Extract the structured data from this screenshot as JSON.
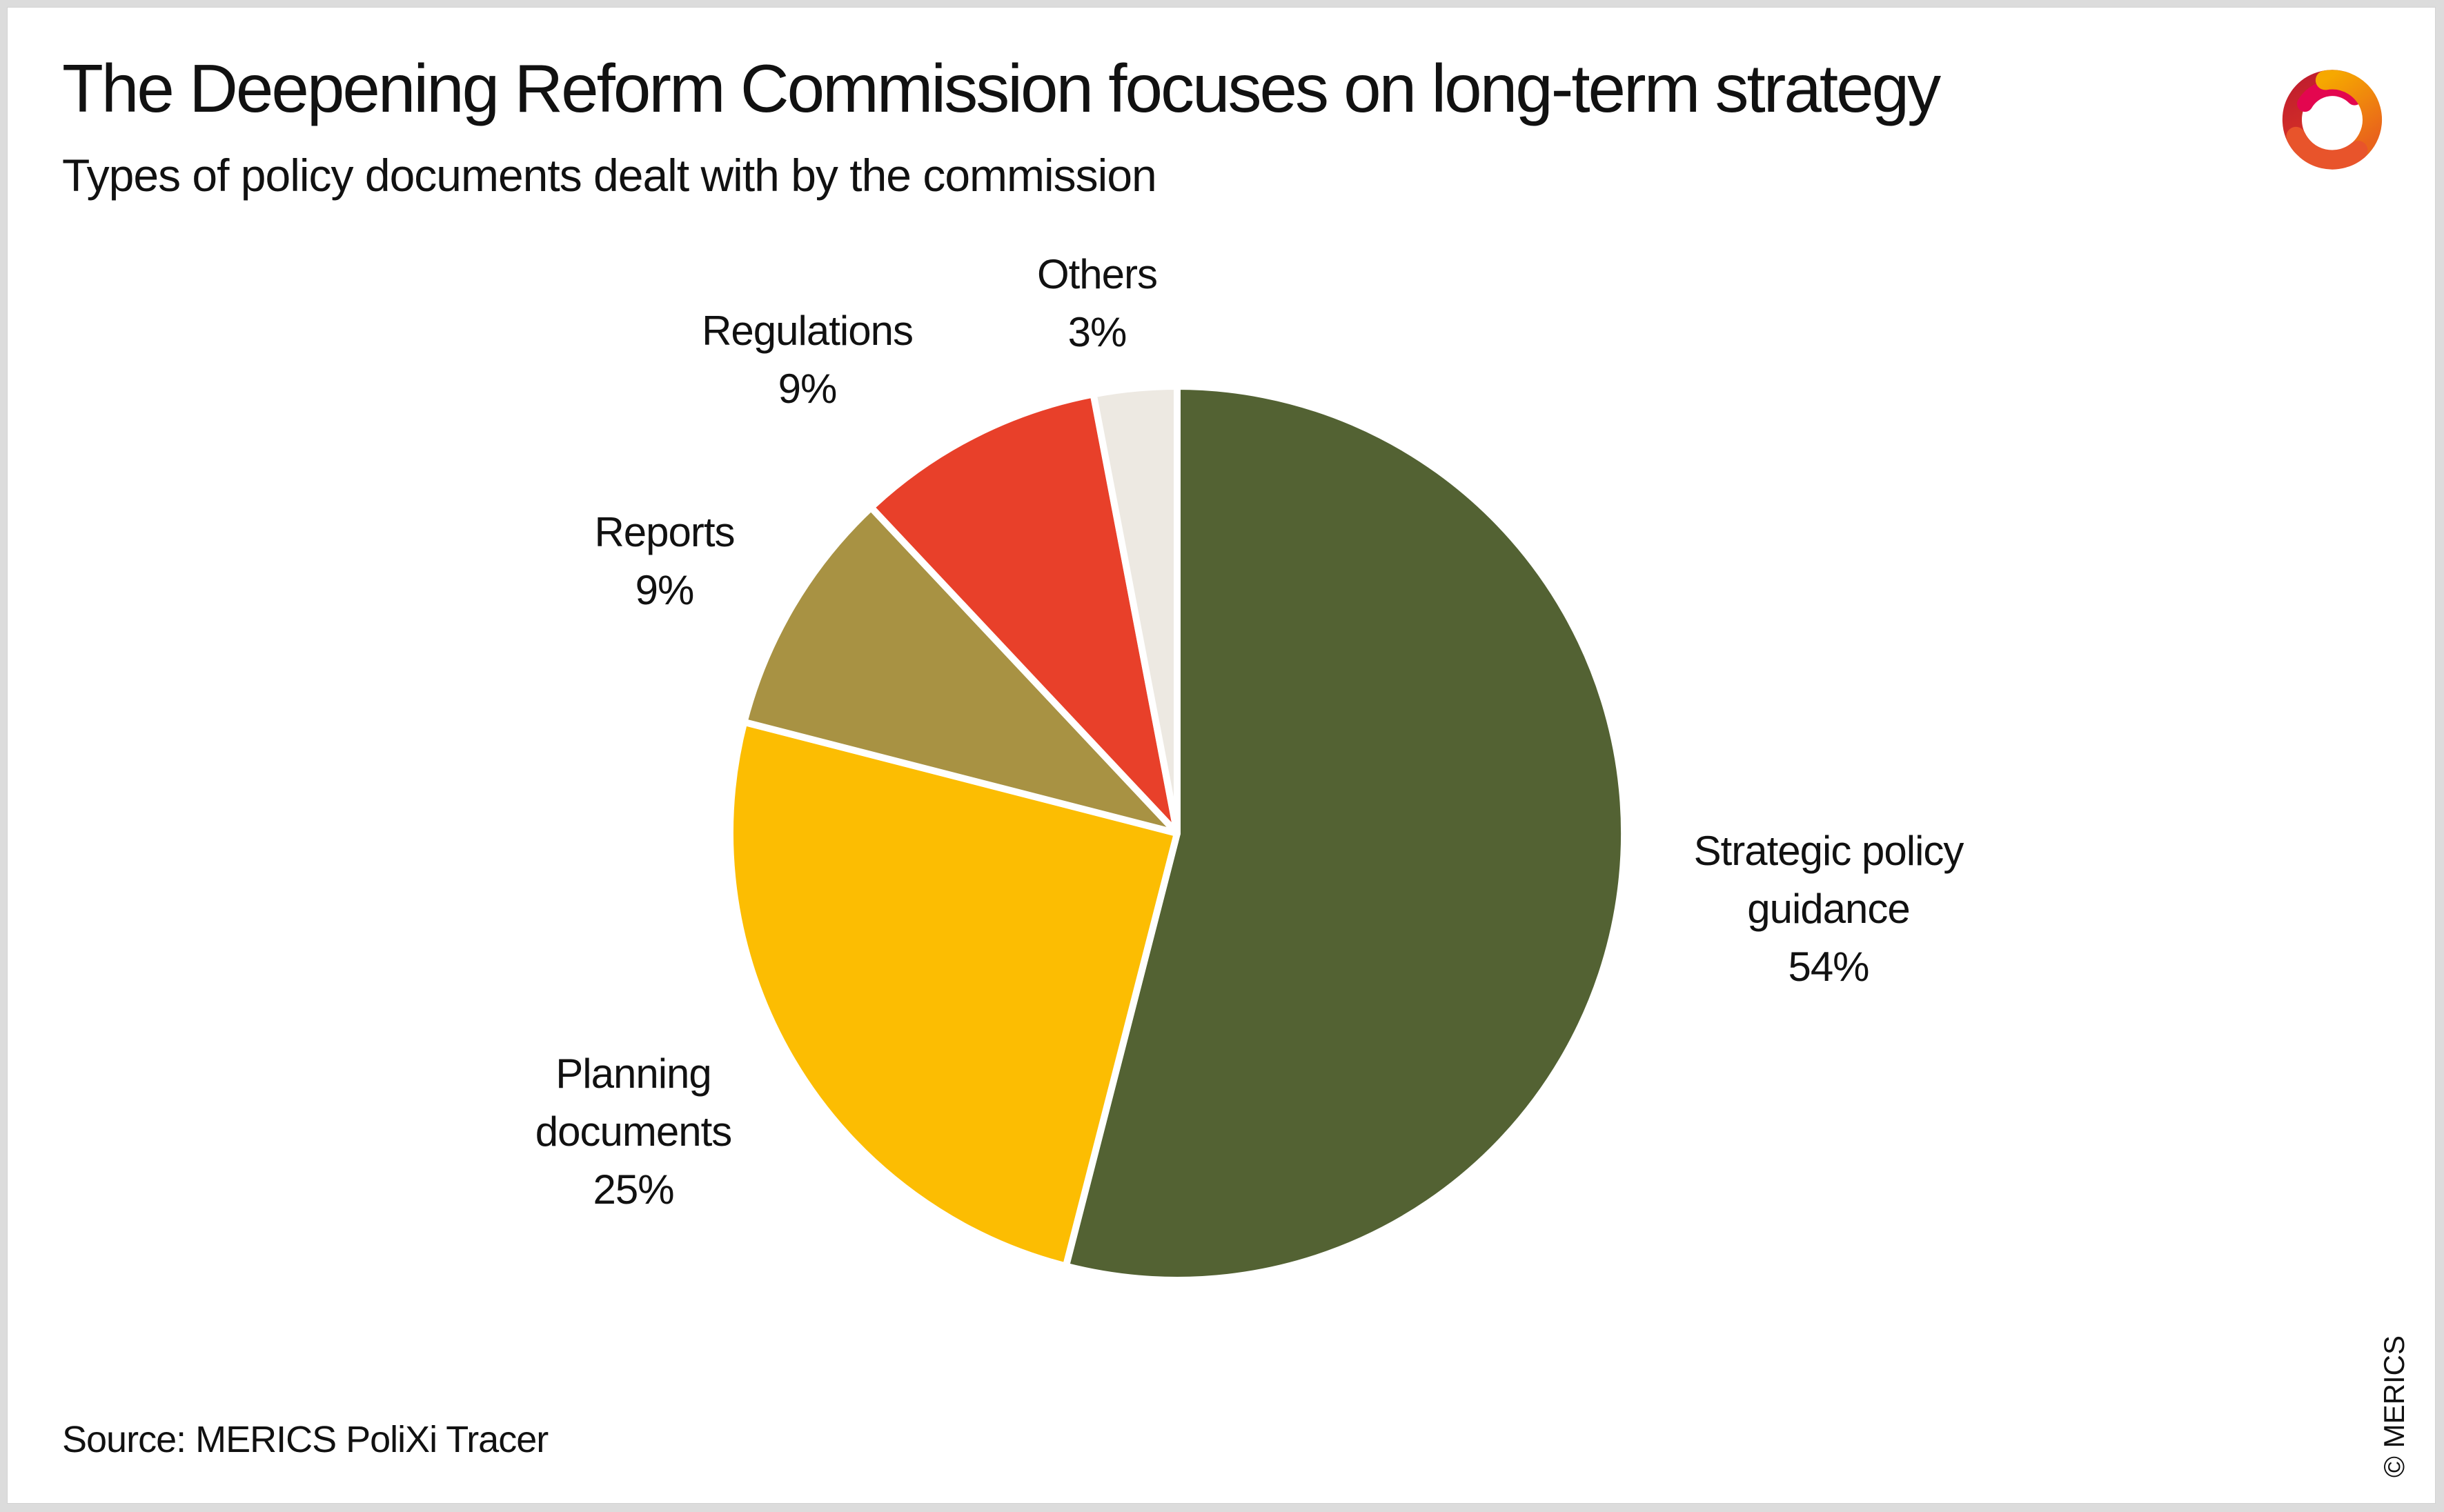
{
  "header": {
    "title": "The Deepening Reform Commission focuses on long-term strategy",
    "subtitle": "Types of policy documents dealt with by the commission"
  },
  "footer": {
    "source": "Source: MERICS PoliXi Tracer",
    "copyright": "© MERICS"
  },
  "branding": {
    "logo": "merics-swirl-logo",
    "logo_colors": [
      "#C01D2E",
      "#E3064F",
      "#F39200",
      "#E8542B"
    ]
  },
  "chart_data": {
    "type": "pie",
    "title": "The Deepening Reform Commission focuses on long-term strategy",
    "subtitle": "Types of policy documents dealt with by the commission",
    "categories": [
      "Strategic policy guidance",
      "Planning documents",
      "Reports",
      "Regulations",
      "Others"
    ],
    "values": [
      54,
      25,
      9,
      9,
      3
    ],
    "unit": "%",
    "colors": [
      "#536233",
      "#FCBD02",
      "#A89243",
      "#E8402A",
      "#EDE9E2"
    ],
    "start_angle": "top",
    "direction": "clockwise",
    "slice_gap_color": "#FFFFFF",
    "legend": "none",
    "labels": [
      {
        "lines": [
          "Strategic policy",
          "guidance",
          "54%"
        ]
      },
      {
        "lines": [
          "Planning",
          "documents",
          "25%"
        ]
      },
      {
        "lines": [
          "Reports",
          "9%"
        ]
      },
      {
        "lines": [
          "Regulations",
          "9%"
        ]
      },
      {
        "lines": [
          "Others",
          "3%"
        ]
      }
    ]
  }
}
